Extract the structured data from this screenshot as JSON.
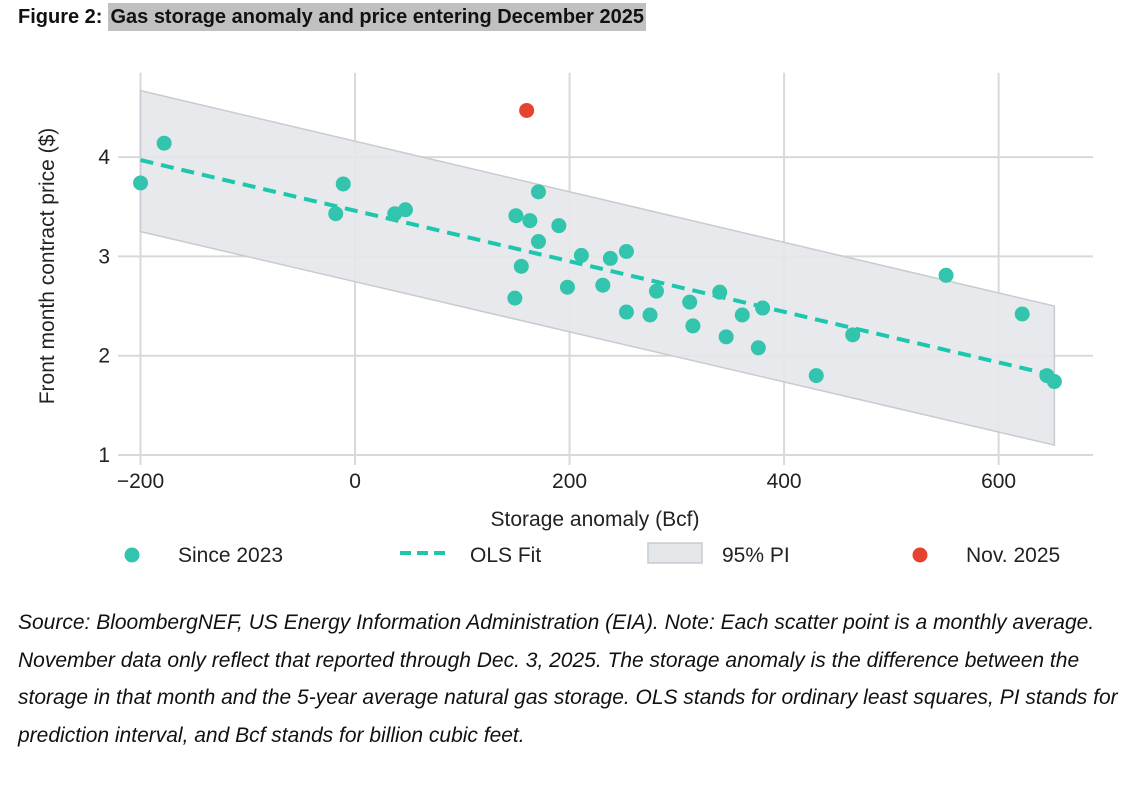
{
  "figure": {
    "label": "Figure 2:",
    "title": "Gas storage anomaly and price entering December 2025"
  },
  "chart_data": {
    "type": "scatter",
    "xlabel": "Storage anomaly (Bcf)",
    "ylabel": "Front month contract price ($)",
    "xlim": [
      -221,
      688
    ],
    "ylim": [
      1,
      4.8
    ],
    "xticks": [
      -200,
      0,
      200,
      400,
      600
    ],
    "xtick_labels": [
      "−200",
      "0",
      "200",
      "400",
      "600"
    ],
    "yticks": [
      1,
      2,
      3,
      4
    ],
    "ytick_labels": [
      "1",
      "2",
      "3",
      "4"
    ],
    "grid": true,
    "legend_position": "bottom",
    "colors": {
      "since2023": "#33c4ad",
      "ols": "#1cc7ad",
      "band": "#e4e7ea",
      "band_edge": "#c8cbd0",
      "nov2025": "#e5432f",
      "grid": "#d9d9d9"
    },
    "series": [
      {
        "name": "Since 2023",
        "kind": "scatter",
        "points": [
          [
            -200,
            3.74
          ],
          [
            -178,
            4.14
          ],
          [
            -11,
            3.73
          ],
          [
            -18,
            3.43
          ],
          [
            37,
            3.43
          ],
          [
            47,
            3.47
          ],
          [
            150,
            3.41
          ],
          [
            163,
            3.36
          ],
          [
            171,
            3.65
          ],
          [
            190,
            3.31
          ],
          [
            171,
            3.15
          ],
          [
            155,
            2.9
          ],
          [
            149,
            2.58
          ],
          [
            211,
            3.01
          ],
          [
            198,
            2.69
          ],
          [
            238,
            2.98
          ],
          [
            253,
            3.05
          ],
          [
            231,
            2.71
          ],
          [
            281,
            2.65
          ],
          [
            253,
            2.44
          ],
          [
            275,
            2.41
          ],
          [
            312,
            2.54
          ],
          [
            315,
            2.3
          ],
          [
            340,
            2.64
          ],
          [
            361,
            2.41
          ],
          [
            380,
            2.48
          ],
          [
            346,
            2.19
          ],
          [
            376,
            2.08
          ],
          [
            464,
            2.21
          ],
          [
            430,
            1.8
          ],
          [
            551,
            2.81
          ],
          [
            622,
            2.42
          ],
          [
            645,
            1.8
          ],
          [
            652,
            1.74
          ]
        ]
      },
      {
        "name": "OLS Fit",
        "kind": "line",
        "points": [
          [
            -200,
            3.97
          ],
          [
            652,
            1.8
          ]
        ]
      },
      {
        "name": "95% PI",
        "kind": "band",
        "upper": [
          [
            -200,
            4.67
          ],
          [
            652,
            2.5
          ]
        ],
        "lower": [
          [
            -200,
            3.25
          ],
          [
            652,
            1.1
          ]
        ]
      },
      {
        "name": "Nov. 2025",
        "kind": "scatter",
        "points": [
          [
            160,
            4.47
          ]
        ]
      }
    ]
  },
  "caption": "Source: BloombergNEF, US Energy Information Administration (EIA). Note: Each scatter point is a monthly average. November data only reflect that reported through Dec. 3, 2025. The storage anomaly is the difference between the storage in that month and the 5-year average natural gas storage. OLS stands for ordinary least squares, PI stands for prediction interval, and Bcf stands for billion cubic feet."
}
